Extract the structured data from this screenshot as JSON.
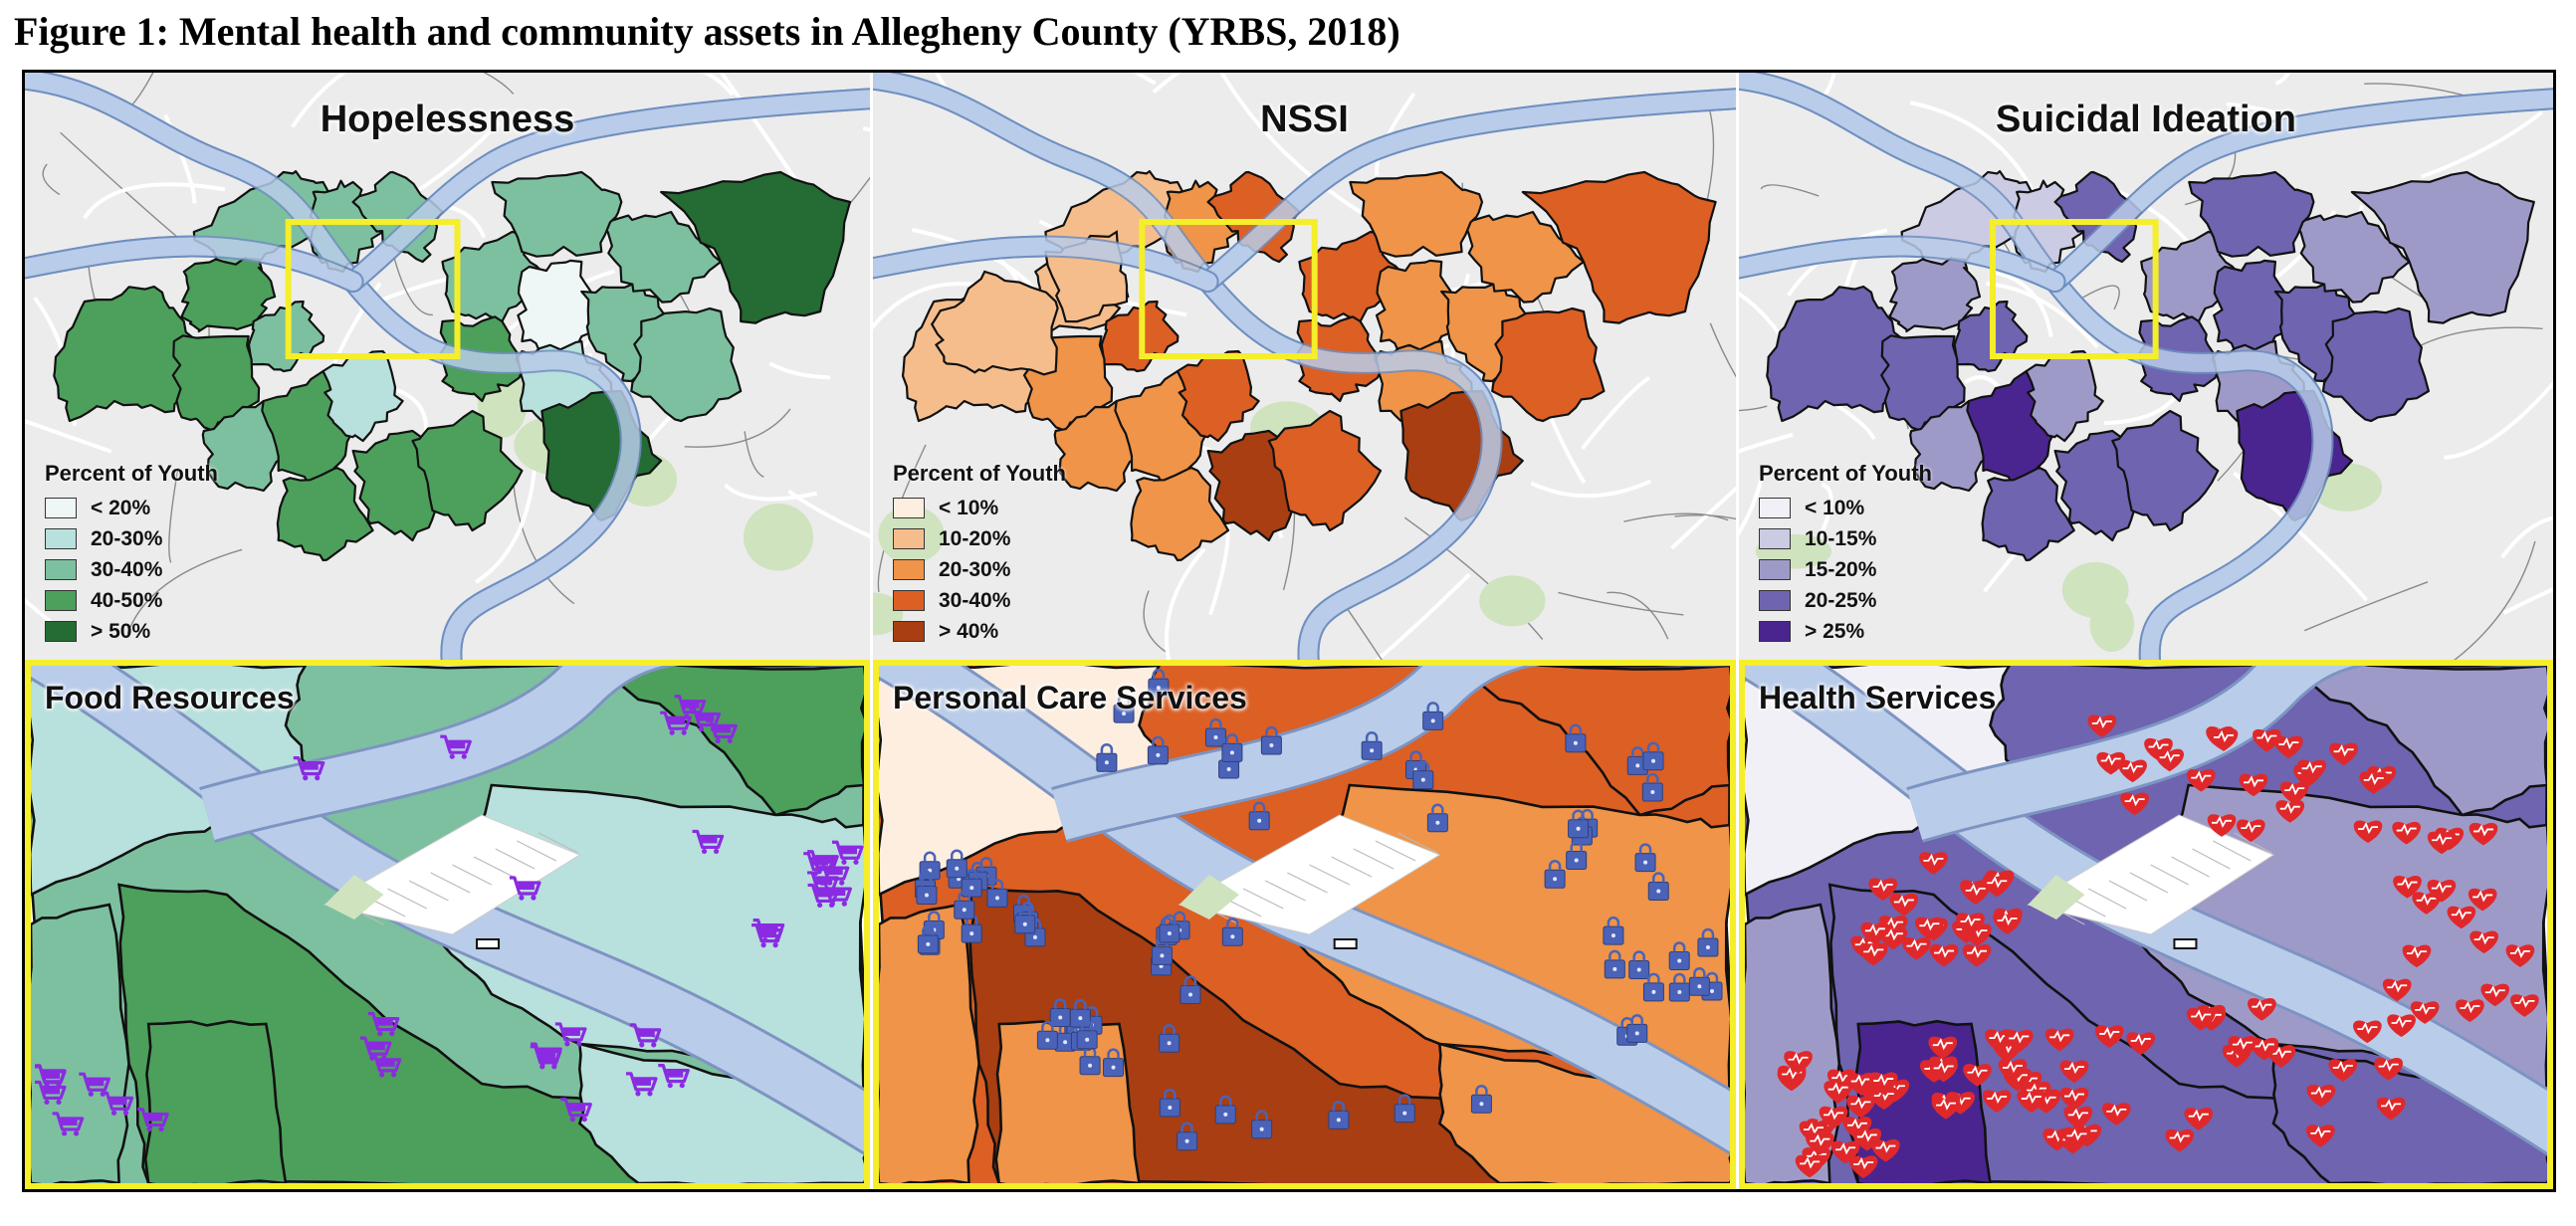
{
  "figure_title": "Figure 1: Mental health and community assets in Allegheny County (YRBS, 2018)",
  "legend_title": "Percent of Youth",
  "maps": [
    {
      "title": "Hopelessness",
      "palette": [
        "#eef7f6",
        "#b8e0dc",
        "#7dc0a0",
        "#4d9f5c",
        "#246b34"
      ],
      "legend": [
        "< 20%",
        "20-30%",
        "30-40%",
        "40-50%",
        "> 50%"
      ]
    },
    {
      "title": "NSSI",
      "palette": [
        "#fdeee0",
        "#f6bd8c",
        "#ef9448",
        "#dc5f24",
        "#a83e12"
      ],
      "legend": [
        "< 10%",
        "10-20%",
        "20-30%",
        "30-40%",
        "> 40%"
      ]
    },
    {
      "title": "Suicidal Ideation",
      "palette": [
        "#f2f0f7",
        "#cccbe4",
        "#9e9ac8",
        "#6e64b0",
        "#4a2590"
      ],
      "legend": [
        "< 10%",
        "10-15%",
        "15-20%",
        "20-25%",
        "> 25%"
      ]
    }
  ],
  "zooms": [
    {
      "title": "Food Resources",
      "marker_icon": "shopping-cart-icon",
      "marker_color": "#8a2be2"
    },
    {
      "title": "Personal Care Services",
      "marker_icon": "shopping-bag-icon",
      "marker_color": "#4a63b8"
    },
    {
      "title": "Health Services",
      "marker_icon": "heartbeat-heart-icon",
      "marker_color": "#e0282a"
    }
  ],
  "colors": {
    "zoom_box": "#f5ee2a",
    "river": "#b9cce9",
    "basemap": "#ececec"
  }
}
